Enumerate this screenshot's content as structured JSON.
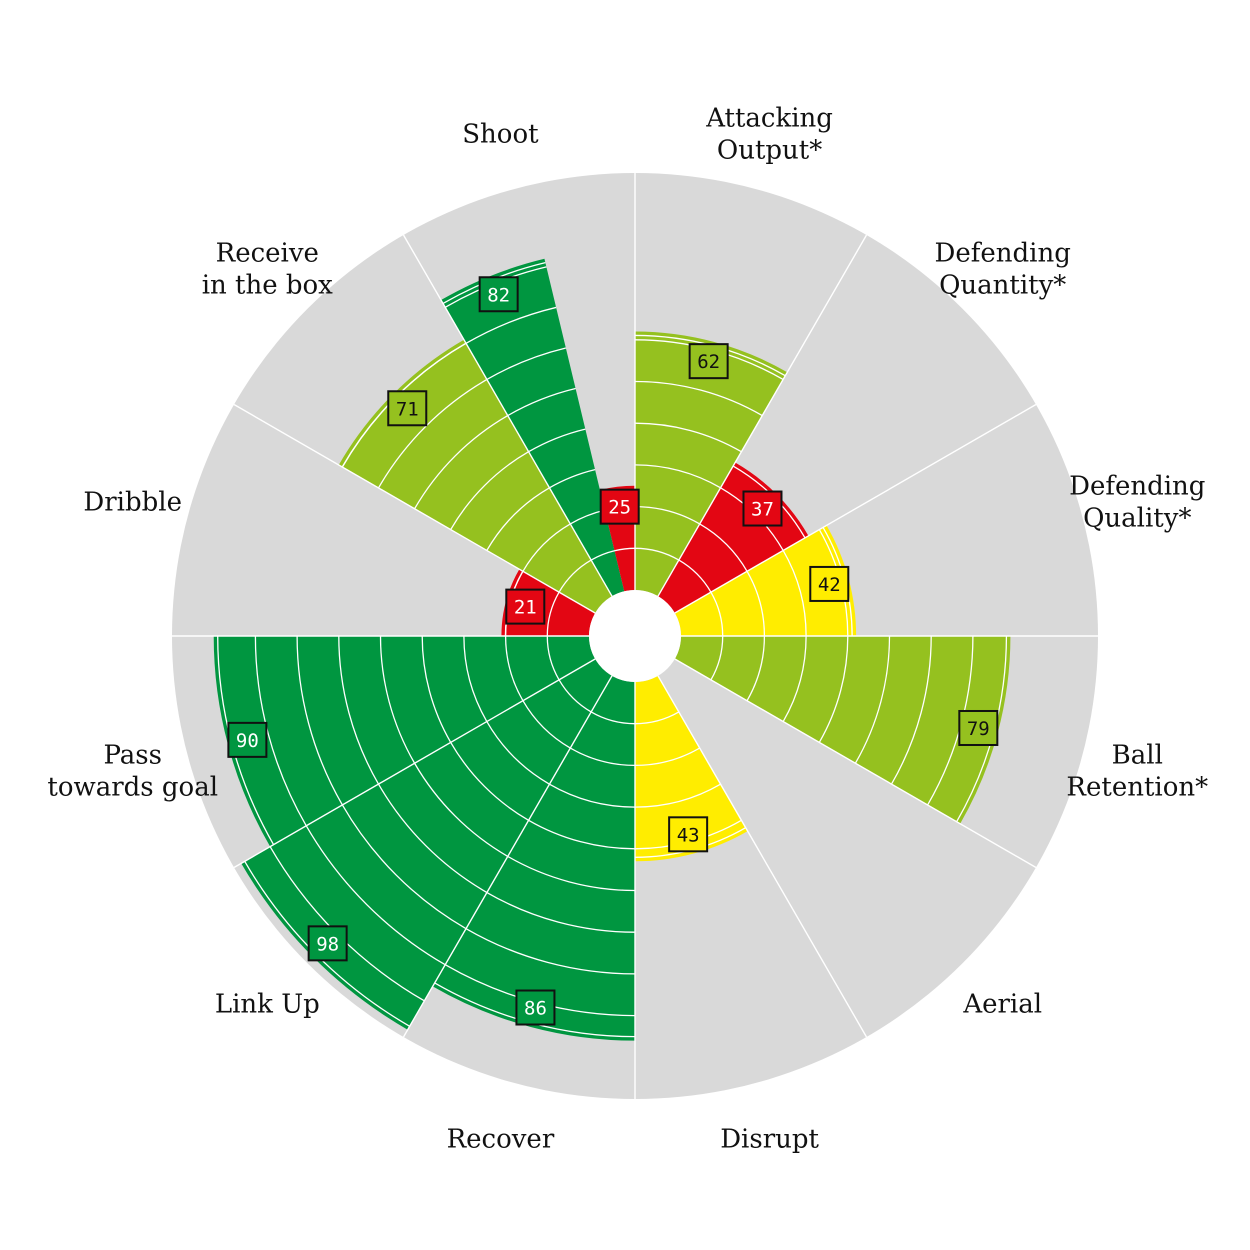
{
  "chart_data": {
    "type": "polar-bar",
    "max_value": 100,
    "ring_step": 10,
    "colors": {
      "background": "#d9d9d9",
      "ring_lines": "#ffffff",
      "red": "#e30613",
      "yellow": "#ffed00",
      "light_green": "#95c11f",
      "dark_green": "#009640"
    },
    "categories": [
      {
        "label_lines": [
          "Attacking",
          "Output*"
        ],
        "value": 62,
        "color_key": "light_green",
        "display": "62"
      },
      {
        "label_lines": [
          "Defending",
          "Quantity*"
        ],
        "value": 37,
        "color_key": "red",
        "display": "37"
      },
      {
        "label_lines": [
          "Defending",
          "Quality*"
        ],
        "value": 42,
        "color_key": "yellow",
        "display": "42"
      },
      {
        "label_lines": [
          "Ball",
          "Retention*"
        ],
        "value": 79,
        "color_key": "light_green",
        "display": "79"
      },
      {
        "label_lines": [
          "Aerial"
        ],
        "value": 0,
        "color_key": "red",
        "display": ""
      },
      {
        "label_lines": [
          "Disrupt"
        ],
        "value": 43,
        "color_key": "yellow",
        "display": "43"
      },
      {
        "label_lines": [
          "Recover"
        ],
        "value": 86,
        "color_key": "dark_green",
        "display": "86"
      },
      {
        "label_lines": [
          "Link Up"
        ],
        "value": 98,
        "color_key": "dark_green",
        "display": "98"
      },
      {
        "label_lines": [
          "Pass",
          "towards goal"
        ],
        "value": 90,
        "color_key": "dark_green",
        "display": "90"
      },
      {
        "label_lines": [
          "Dribble"
        ],
        "value": 21,
        "color_key": "red",
        "display": "21"
      },
      {
        "label_lines": [
          "Receive",
          "in the box"
        ],
        "value": 71,
        "color_key": "light_green",
        "display": "71"
      },
      {
        "label_lines": [
          "Shoot"
        ],
        "value": 82,
        "color_key": "dark_green",
        "display": "82"
      },
      {
        "label_lines": [],
        "value": 25,
        "color_key": "red",
        "display": "25"
      }
    ]
  }
}
